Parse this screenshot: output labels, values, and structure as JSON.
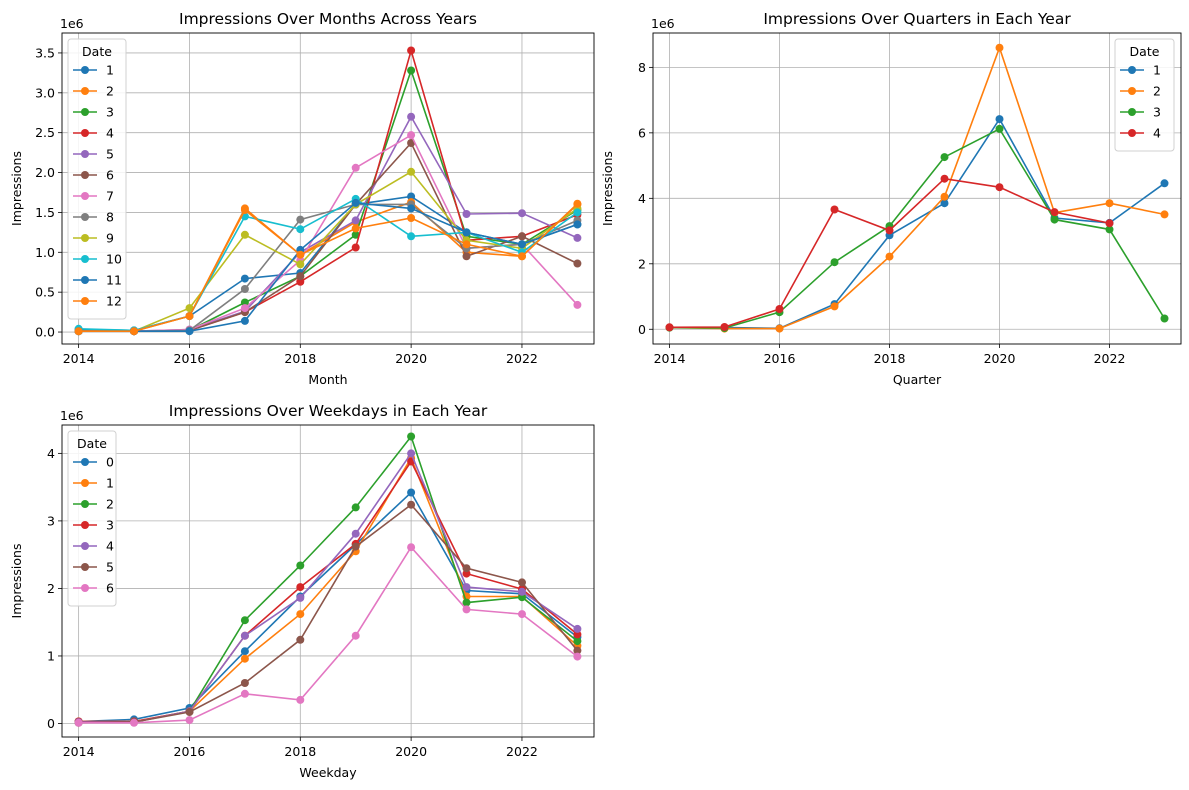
{
  "palette": [
    "#1f77b4",
    "#ff7f0e",
    "#2ca02c",
    "#d62728",
    "#9467bd",
    "#8c564b",
    "#e377c2",
    "#7f7f7f",
    "#bcbd22",
    "#17becf"
  ],
  "chart_data": [
    {
      "type": "line",
      "title": "Impressions Over Months Across Years",
      "xlabel": "Month",
      "ylabel": "Impressions",
      "offset_text": "1e6",
      "xlim": [
        2013.7,
        2023.3
      ],
      "ylim": [
        -0.15,
        3.75
      ],
      "xticks": [
        2014,
        2016,
        2018,
        2020,
        2022
      ],
      "yticks": [
        0.0,
        0.5,
        1.0,
        1.5,
        2.0,
        2.5,
        3.0,
        3.5
      ],
      "ytick_labels": [
        "0.0",
        "0.5",
        "1.0",
        "1.5",
        "2.0",
        "2.5",
        "3.0",
        "3.5"
      ],
      "grid": true,
      "legend": {
        "title": "Date",
        "placement": "upper-left"
      },
      "x": [
        2014,
        2015,
        2016,
        2017,
        2018,
        2019,
        2020,
        2021,
        2022,
        2023
      ],
      "series": [
        {
          "name": "1",
          "values": [
            0.03,
            0.02,
            0.2,
            0.67,
            0.74,
            1.6,
            1.7,
            1.25,
            1.1,
            1.35
          ]
        },
        {
          "name": "2",
          "values": [
            0.01,
            0.01,
            0.2,
            1.55,
            0.97,
            1.38,
            1.63,
            1.0,
            0.95,
            1.6
          ]
        },
        {
          "name": "3",
          "values": [
            0.01,
            0.01,
            0.02,
            0.37,
            0.7,
            1.22,
            3.28,
            1.2,
            1.1,
            1.53
          ]
        },
        {
          "name": "4",
          "values": [
            0.01,
            0.01,
            0.02,
            0.25,
            0.63,
            1.06,
            3.53,
            1.15,
            1.2,
            1.47
          ]
        },
        {
          "name": "5",
          "values": [
            0.01,
            0.01,
            0.03,
            0.26,
            1.0,
            1.4,
            2.7,
            1.48,
            1.49,
            1.18
          ]
        },
        {
          "name": "6",
          "values": [
            0.01,
            0.01,
            0.02,
            0.25,
            0.7,
            1.6,
            2.37,
            0.95,
            1.2,
            0.86
          ]
        },
        {
          "name": "7",
          "values": [
            0.01,
            0.01,
            0.03,
            0.3,
            0.9,
            2.06,
            2.47,
            1.05,
            1.1,
            0.34
          ]
        },
        {
          "name": "8",
          "values": [
            0.01,
            0.01,
            0.02,
            0.54,
            1.41,
            1.6,
            1.6,
            1.05,
            1.1,
            1.4
          ]
        },
        {
          "name": "9",
          "values": [
            0.01,
            0.01,
            0.3,
            1.22,
            0.85,
            1.6,
            2.01,
            1.15,
            1.05,
            1.55
          ]
        },
        {
          "name": "10",
          "values": [
            0.04,
            0.02,
            0.2,
            1.45,
            1.29,
            1.67,
            1.2,
            1.25,
            1.0,
            1.5
          ]
        },
        {
          "name": "11",
          "values": [
            0.01,
            0.01,
            0.01,
            0.14,
            1.03,
            1.62,
            1.55,
            1.25,
            1.1,
            1.35
          ]
        },
        {
          "name": "12",
          "values": [
            0.01,
            0.01,
            0.2,
            1.53,
            0.97,
            1.3,
            1.43,
            1.1,
            0.95,
            1.61
          ]
        }
      ]
    },
    {
      "type": "line",
      "title": "Impressions Over Quarters in Each Year",
      "xlabel": "Quarter",
      "ylabel": "Impressions",
      "offset_text": "1e6",
      "xlim": [
        2013.7,
        2023.3
      ],
      "ylim": [
        -0.45,
        9.05
      ],
      "xticks": [
        2014,
        2016,
        2018,
        2020,
        2022
      ],
      "yticks": [
        0,
        2,
        4,
        6,
        8
      ],
      "ytick_labels": [
        "0",
        "2",
        "4",
        "6",
        "8"
      ],
      "grid": true,
      "legend": {
        "title": "Date",
        "placement": "upper-right"
      },
      "x": [
        2014,
        2015,
        2016,
        2017,
        2018,
        2019,
        2020,
        2021,
        2022,
        2023
      ],
      "series": [
        {
          "name": "1",
          "values": [
            0.05,
            0.05,
            0.03,
            0.77,
            2.87,
            3.85,
            6.42,
            3.4,
            3.25,
            4.46
          ]
        },
        {
          "name": "2",
          "values": [
            0.05,
            0.02,
            0.02,
            0.7,
            2.22,
            4.05,
            8.6,
            3.56,
            3.85,
            3.51
          ]
        },
        {
          "name": "3",
          "values": [
            0.05,
            0.04,
            0.52,
            2.05,
            3.15,
            5.26,
            6.12,
            3.35,
            3.05,
            0.33
          ]
        },
        {
          "name": "4",
          "values": [
            0.06,
            0.07,
            0.62,
            3.66,
            3.02,
            4.6,
            4.34,
            3.58,
            3.24,
            null
          ]
        }
      ]
    },
    {
      "type": "line",
      "title": "Impressions Over Weekdays in Each Year",
      "xlabel": "Weekday",
      "ylabel": "Impressions",
      "offset_text": "1e6",
      "xlim": [
        2013.7,
        2023.3
      ],
      "ylim": [
        -0.2,
        4.42
      ],
      "xticks": [
        2014,
        2016,
        2018,
        2020,
        2022
      ],
      "yticks": [
        0,
        1,
        2,
        3,
        4
      ],
      "ytick_labels": [
        "0",
        "1",
        "2",
        "3",
        "4"
      ],
      "grid": true,
      "legend": {
        "title": "Date",
        "placement": "upper-left"
      },
      "x": [
        2014,
        2015,
        2016,
        2017,
        2018,
        2019,
        2020,
        2021,
        2022,
        2023
      ],
      "series": [
        {
          "name": "0",
          "values": [
            0.03,
            0.06,
            0.23,
            1.07,
            1.88,
            2.65,
            3.42,
            1.97,
            1.92,
            1.28
          ]
        },
        {
          "name": "1",
          "values": [
            0.03,
            0.03,
            0.18,
            0.96,
            1.62,
            2.55,
            3.93,
            1.88,
            1.88,
            1.15
          ]
        },
        {
          "name": "2",
          "values": [
            0.02,
            0.02,
            0.18,
            1.53,
            2.34,
            3.2,
            4.25,
            1.79,
            1.87,
            1.22
          ]
        },
        {
          "name": "3",
          "values": [
            0.03,
            0.03,
            0.18,
            1.3,
            2.02,
            2.66,
            3.88,
            2.22,
            1.99,
            1.32
          ]
        },
        {
          "name": "4",
          "values": [
            0.02,
            0.02,
            0.18,
            1.3,
            1.86,
            2.81,
            4.0,
            2.02,
            1.95,
            1.4
          ]
        },
        {
          "name": "5",
          "values": [
            0.01,
            0.02,
            0.17,
            0.6,
            1.24,
            2.62,
            3.24,
            2.3,
            2.09,
            1.08
          ]
        },
        {
          "name": "6",
          "values": [
            0.01,
            0.01,
            0.05,
            0.44,
            0.35,
            1.3,
            2.61,
            1.69,
            1.62,
            0.99
          ]
        }
      ]
    }
  ]
}
